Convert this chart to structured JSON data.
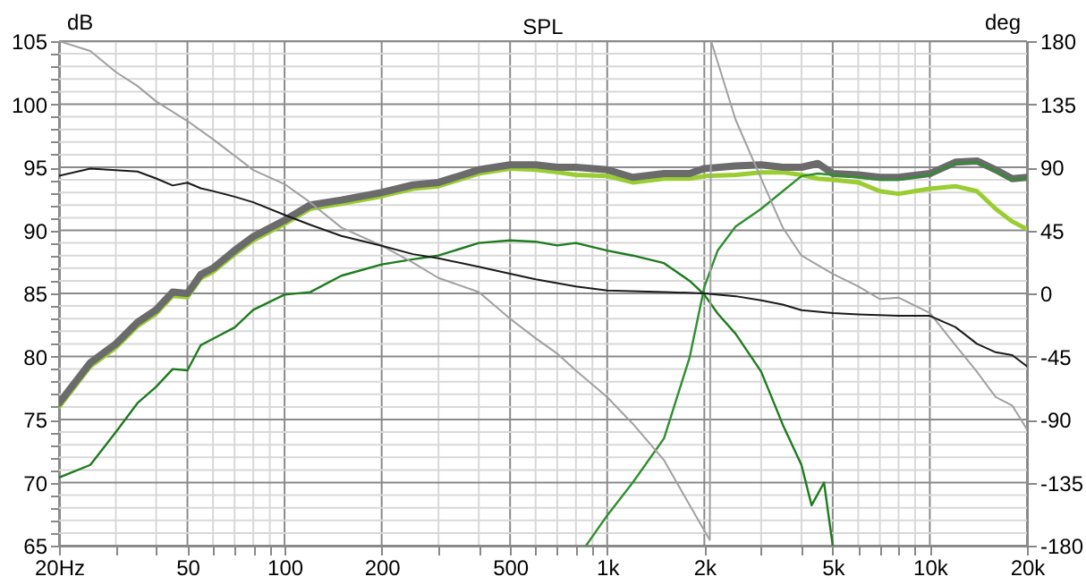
{
  "chart_data": {
    "type": "line",
    "title": "SPL",
    "ylabel": "dB",
    "y2label": "deg",
    "xlim": [
      20,
      20000
    ],
    "log": "x",
    "grid": true,
    "marker": "none",
    "line_style": "solid",
    "xticks": [
      {
        "value": 20,
        "label": "20Hz"
      },
      {
        "value": 30,
        "label": null
      },
      {
        "value": 40,
        "label": null
      },
      50,
      {
        "value": 60,
        "label": null
      },
      {
        "value": 70,
        "label": null
      },
      {
        "value": 80,
        "label": null
      },
      {
        "value": 90,
        "label": null
      },
      100,
      200,
      {
        "value": 300,
        "label": null
      },
      {
        "value": 400,
        "label": null
      },
      500,
      {
        "value": 600,
        "label": null
      },
      {
        "value": 700,
        "label": null
      },
      {
        "value": 800,
        "label": null
      },
      {
        "value": 900,
        "label": null
      },
      {
        "value": 1000,
        "label": "1k"
      },
      {
        "value": 2000,
        "label": "2k"
      },
      {
        "value": 3000,
        "label": null
      },
      {
        "value": 4000,
        "label": null
      },
      {
        "value": 5000,
        "label": "5k"
      },
      {
        "value": 6000,
        "label": null
      },
      {
        "value": 7000,
        "label": null
      },
      {
        "value": 8000,
        "label": null
      },
      {
        "value": 9000,
        "label": null
      },
      {
        "value": 10000,
        "label": "10k"
      },
      {
        "value": 20000,
        "label": "20k"
      }
    ],
    "ylim": [
      65,
      105
    ],
    "yticks": [
      65,
      {
        "value": 66,
        "label": null
      },
      {
        "value": 67,
        "label": null
      },
      {
        "value": 68,
        "label": null
      },
      {
        "value": 69,
        "label": null
      },
      70,
      {
        "value": 71,
        "label": null
      },
      {
        "value": 72,
        "label": null
      },
      {
        "value": 73,
        "label": null
      },
      {
        "value": 74,
        "label": null
      },
      75,
      {
        "value": 76,
        "label": null
      },
      {
        "value": 77,
        "label": null
      },
      {
        "value": 78,
        "label": null
      },
      {
        "value": 79,
        "label": null
      },
      80,
      {
        "value": 81,
        "label": null
      },
      {
        "value": 82,
        "label": null
      },
      {
        "value": 83,
        "label": null
      },
      {
        "value": 84,
        "label": null
      },
      85,
      {
        "value": 86,
        "label": null
      },
      {
        "value": 87,
        "label": null
      },
      {
        "value": 88,
        "label": null
      },
      {
        "value": 89,
        "label": null
      },
      90,
      {
        "value": 91,
        "label": null
      },
      {
        "value": 92,
        "label": null
      },
      {
        "value": 93,
        "label": null
      },
      {
        "value": 94,
        "label": null
      },
      95,
      {
        "value": 96,
        "label": null
      },
      {
        "value": 97,
        "label": null
      },
      {
        "value": 98,
        "label": null
      },
      {
        "value": 99,
        "label": null
      },
      100,
      {
        "value": 101,
        "label": null
      },
      {
        "value": 102,
        "label": null
      },
      {
        "value": 103,
        "label": null
      },
      {
        "value": 104,
        "label": null
      },
      105
    ],
    "y2lim": [
      -180,
      180
    ],
    "y2ticks": [
      -180,
      -135,
      -90,
      -45,
      0,
      45,
      90,
      135,
      180
    ],
    "series": [
      {
        "color": "#a0a0a0",
        "axis": "y2",
        "x": [
          20,
          25,
          30,
          35,
          40,
          50,
          60,
          80,
          100,
          120,
          150,
          200,
          250,
          300,
          400,
          500,
          600,
          700,
          800,
          1000,
          1200,
          1500,
          1800,
          2080,
          2100,
          2500,
          3000,
          3500,
          4000,
          5000,
          6000,
          7000,
          8000,
          10000,
          12000,
          14000,
          16000,
          18000,
          20000
        ],
        "values": [
          180,
          173,
          158,
          148,
          137,
          123,
          110,
          88,
          78,
          65,
          47,
          34,
          22,
          11,
          1,
          -18,
          -32,
          -43,
          -55,
          -74,
          -93,
          -119,
          -151,
          -176,
          180,
          124,
          82,
          47,
          27,
          14,
          5,
          -4,
          -3,
          -14,
          -37,
          -56,
          -74,
          -80,
          -97
        ]
      },
      {
        "color": "#1a1a1a",
        "axis": "y2",
        "x": [
          20,
          25,
          30,
          35,
          40,
          45,
          50,
          55,
          60,
          70,
          80,
          100,
          120,
          150,
          200,
          250,
          300,
          400,
          500,
          600,
          800,
          1000,
          1500,
          2000,
          2500,
          3000,
          3500,
          4000,
          5000,
          6000,
          8000,
          10000,
          12000,
          14000,
          16000,
          18000,
          20000
        ],
        "values": [
          84,
          89,
          88,
          87,
          82,
          77,
          79,
          75,
          73,
          69,
          65,
          56,
          49,
          41,
          34,
          28,
          25,
          19,
          14,
          10,
          5,
          2,
          1,
          0,
          -2,
          -5,
          -8,
          -12,
          -14,
          -15,
          -16,
          -16,
          -24,
          -36,
          -42,
          -44,
          -52
        ]
      },
      {
        "color": "#1e7b1e",
        "x": [
          20,
          25,
          30,
          35,
          40,
          45,
          50,
          55,
          60,
          70,
          80,
          100,
          120,
          150,
          200,
          250,
          300,
          400,
          500,
          600,
          700,
          800,
          1000,
          1200,
          1500,
          1800,
          2000,
          2200,
          2500,
          3000,
          3500,
          4000,
          4300,
          4700,
          5000
        ],
        "values": [
          70.4,
          71.4,
          74,
          76.3,
          77.6,
          79,
          78.9,
          80.9,
          81.4,
          82.3,
          83.7,
          84.9,
          85.1,
          86.4,
          87.3,
          87.7,
          88,
          89,
          89.2,
          89.1,
          88.8,
          89,
          88.4,
          88,
          87.4,
          86,
          84.9,
          83.4,
          81.8,
          78.8,
          74.6,
          71.4,
          68.2,
          70,
          65
        ]
      },
      {
        "color": "#9acd32",
        "x": [
          20,
          25,
          30,
          35,
          40,
          45,
          50,
          55,
          60,
          70,
          80,
          100,
          120,
          150,
          200,
          250,
          300,
          400,
          500,
          600,
          700,
          800,
          1000,
          1200,
          1500,
          1800,
          2000,
          2500,
          3000,
          3500,
          4000,
          4500,
          5000,
          6000,
          7000,
          8000,
          10000,
          12000,
          14000,
          16000,
          18000,
          20000
        ],
        "values": [
          76,
          79.2,
          80.7,
          82.4,
          83.4,
          84.8,
          84.7,
          86.2,
          86.7,
          88.1,
          89.2,
          90.5,
          91.7,
          92.1,
          92.7,
          93.3,
          93.5,
          94.5,
          94.9,
          94.8,
          94.6,
          94.4,
          94.3,
          93.8,
          94.1,
          94.1,
          94.3,
          94.4,
          94.6,
          94.6,
          94.4,
          94.1,
          94,
          93.8,
          93.1,
          92.9,
          93.3,
          93.5,
          93.1,
          91.7,
          90.7,
          90.1
        ]
      },
      {
        "color": "#6b6b6b",
        "x": [
          20,
          25,
          30,
          35,
          40,
          45,
          50,
          55,
          60,
          70,
          80,
          100,
          120,
          150,
          200,
          250,
          300,
          400,
          500,
          600,
          700,
          800,
          1000,
          1200,
          1500,
          1800,
          2000,
          2500,
          3000,
          3500,
          4000,
          4500,
          5000,
          6000,
          7000,
          8000,
          10000,
          12000,
          14000,
          16000,
          18000,
          20000
        ],
        "values": [
          76.3,
          79.5,
          81,
          82.7,
          83.7,
          85.1,
          85,
          86.5,
          87,
          88.4,
          89.5,
          90.8,
          92,
          92.4,
          93,
          93.6,
          93.8,
          94.8,
          95.2,
          95.2,
          95,
          95,
          94.8,
          94.2,
          94.5,
          94.5,
          94.9,
          95.1,
          95.2,
          95,
          95,
          95.3,
          94.5,
          94.4,
          94.2,
          94.2,
          94.5,
          95.4,
          95.5,
          94.8,
          94.1,
          94.2
        ]
      },
      {
        "color": "#2f8f2f",
        "x": [
          860,
          1000,
          1200,
          1500,
          1800,
          2000,
          2200,
          2500,
          3000,
          3500,
          4000,
          4500,
          5000,
          6000,
          7000,
          8000,
          10000,
          12000,
          14000,
          16000,
          18000,
          20000
        ],
        "values": [
          65,
          67.4,
          70,
          73.5,
          79.9,
          85.5,
          88.4,
          90.3,
          91.7,
          93.1,
          94.3,
          94.5,
          94.4,
          94.2,
          94,
          94,
          94.4,
          95.3,
          95.4,
          94.7,
          94,
          94.1
        ]
      }
    ]
  }
}
